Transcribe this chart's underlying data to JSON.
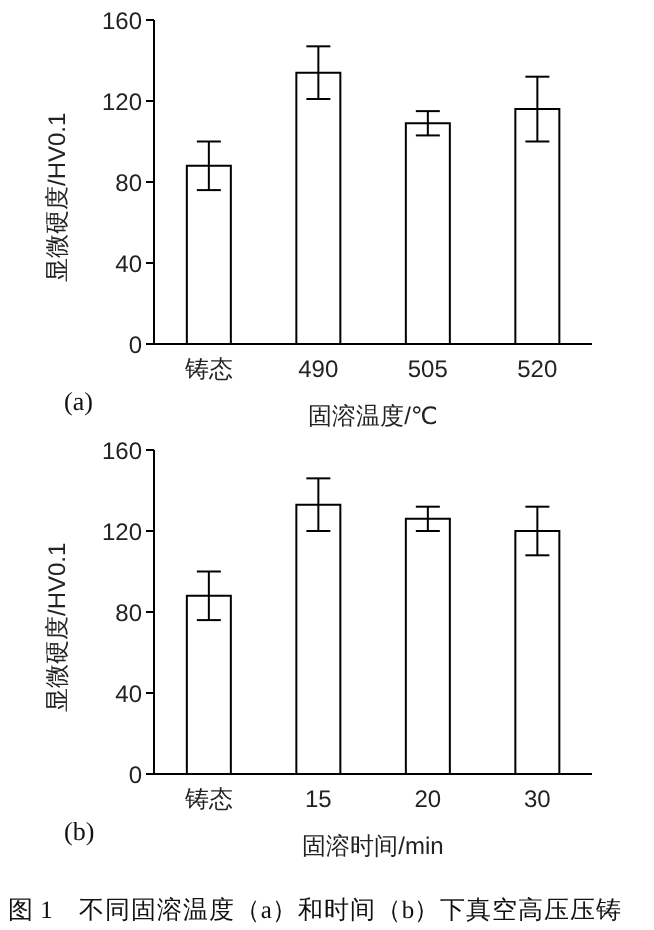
{
  "chart_data": [
    {
      "type": "bar",
      "xlabel": "固溶温度/℃",
      "ylabel": "显微硬度/HV0.1",
      "categories": [
        "铸态",
        "490",
        "505",
        "520"
      ],
      "values": [
        88,
        134,
        109,
        116
      ],
      "errors": [
        12,
        13,
        6,
        16
      ],
      "color": "#ffffff",
      "ylim": [
        0,
        160
      ],
      "yticks": [
        0,
        40,
        80,
        120,
        160
      ],
      "grid": false,
      "legend": false,
      "annotations": [
        "(a)"
      ]
    },
    {
      "type": "bar",
      "xlabel": "固溶时间/min",
      "ylabel": "显微硬度/HV0.1",
      "categories": [
        "铸态",
        "15",
        "20",
        "30"
      ],
      "values": [
        88,
        133,
        126,
        120
      ],
      "errors": [
        12,
        13,
        6,
        12
      ],
      "color": "#ffffff",
      "ylim": [
        0,
        160
      ],
      "yticks": [
        0,
        40,
        80,
        120,
        160
      ],
      "grid": false,
      "legend": false,
      "annotations": [
        "(b)",
        "图 1　不同固溶温度（a）和时间（b）下真空高压压铸"
      ]
    }
  ]
}
